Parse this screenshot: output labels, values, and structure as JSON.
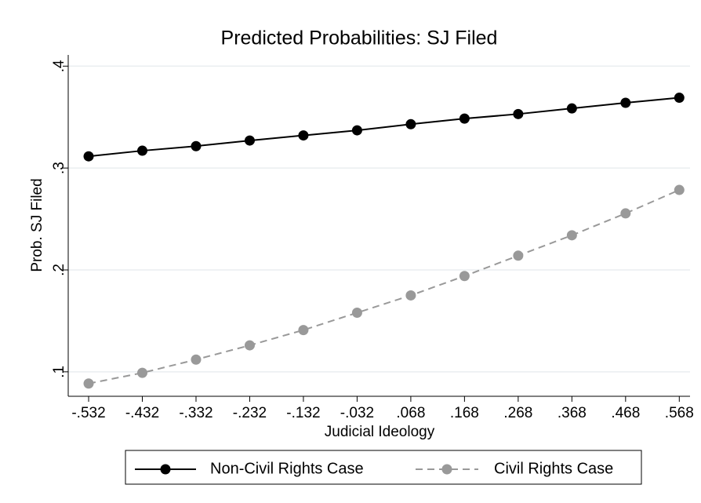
{
  "chart_data": {
    "type": "line",
    "title": "Predicted Probabilities:  SJ Filed",
    "x_label": "Judicial Ideology",
    "y_label": "Prob. SJ Filed",
    "x": [
      -0.532,
      -0.432,
      -0.332,
      -0.232,
      -0.132,
      -0.032,
      0.068,
      0.168,
      0.268,
      0.368,
      0.468,
      0.568
    ],
    "series": [
      {
        "name": "Non-Civil Rights Case",
        "color": "#000000",
        "dashed": false,
        "values": [
          0.3115,
          0.317,
          0.3215,
          0.327,
          0.332,
          0.337,
          0.343,
          0.3485,
          0.353,
          0.3585,
          0.364,
          0.369
        ]
      },
      {
        "name": "Civil Rights Case",
        "color": "#999999",
        "dashed": true,
        "values": [
          0.0885,
          0.099,
          0.112,
          0.126,
          0.141,
          0.158,
          0.175,
          0.194,
          0.214,
          0.234,
          0.2555,
          0.2785
        ]
      }
    ],
    "xlim": [
      -0.57,
      0.588
    ],
    "ylim": [
      0.076,
      0.411
    ],
    "xticks": [
      {
        "value": -0.532,
        "label": "-.532"
      },
      {
        "value": -0.432,
        "label": "-.432"
      },
      {
        "value": -0.332,
        "label": "-.332"
      },
      {
        "value": -0.232,
        "label": "-.232"
      },
      {
        "value": -0.132,
        "label": "-.132"
      },
      {
        "value": -0.032,
        "label": "-.032"
      },
      {
        "value": 0.068,
        "label": ".068"
      },
      {
        "value": 0.168,
        "label": ".168"
      },
      {
        "value": 0.268,
        "label": ".268"
      },
      {
        "value": 0.368,
        "label": ".368"
      },
      {
        "value": 0.468,
        "label": ".468"
      },
      {
        "value": 0.568,
        "label": ".568"
      }
    ],
    "yticks": [
      {
        "value": 0.1,
        "label": ".1"
      },
      {
        "value": 0.2,
        "label": ".2"
      },
      {
        "value": 0.3,
        "label": ".3"
      },
      {
        "value": 0.4,
        "label": ".4"
      }
    ],
    "grid": true,
    "legend": "bottom"
  }
}
